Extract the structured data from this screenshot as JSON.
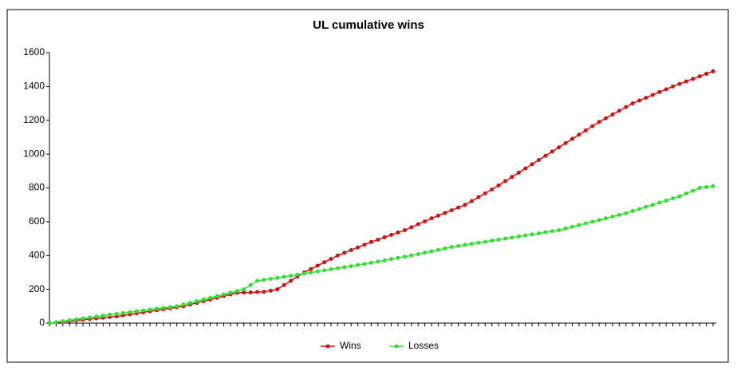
{
  "chart_data": {
    "type": "line",
    "title": "UL cumulative wins",
    "categories": [
      null,
      null,
      null,
      null,
      null,
      null,
      null,
      null,
      null,
      null,
      null,
      null,
      null,
      null,
      null,
      null,
      null,
      null,
      null,
      null,
      null,
      null,
      null,
      null,
      null,
      null,
      null,
      null,
      null,
      null,
      null,
      null,
      null,
      null,
      null,
      null,
      null,
      null,
      null,
      null,
      null,
      null,
      null,
      null,
      null,
      null,
      null,
      null,
      null,
      null,
      null,
      null,
      null,
      null,
      null,
      null,
      null,
      null,
      null,
      null,
      null,
      null,
      null,
      null,
      null,
      null,
      null,
      null,
      null,
      null,
      null,
      null,
      null,
      null,
      null,
      null,
      null,
      null,
      null,
      null,
      null,
      null,
      null,
      null,
      null,
      null,
      null,
      null,
      null,
      null,
      null,
      null,
      null,
      null,
      null,
      null,
      null,
      null,
      null,
      null
    ],
    "series": [
      {
        "name": "Wins",
        "color": "#cc1111",
        "values": [
          0,
          4,
          8,
          12,
          16,
          20,
          24,
          28,
          32,
          36,
          40,
          46,
          52,
          58,
          64,
          70,
          76,
          82,
          88,
          94,
          100,
          110,
          120,
          130,
          140,
          150,
          160,
          170,
          180,
          181,
          182,
          184,
          185,
          192,
          200,
          225,
          250,
          275,
          300,
          320,
          340,
          360,
          380,
          400,
          416,
          432,
          448,
          464,
          480,
          494,
          508,
          522,
          536,
          550,
          567,
          585,
          602,
          620,
          636,
          652,
          668,
          684,
          700,
          722,
          745,
          768,
          790,
          815,
          840,
          865,
          890,
          915,
          940,
          965,
          990,
          1015,
          1040,
          1065,
          1090,
          1115,
          1140,
          1165,
          1190,
          1212,
          1234,
          1256,
          1278,
          1300,
          1317,
          1333,
          1350,
          1367,
          1383,
          1400,
          1415,
          1430,
          1445,
          1460,
          1475,
          1490
        ]
      },
      {
        "name": "Losses",
        "color": "#33dd33",
        "values": [
          0,
          6,
          11,
          17,
          22,
          28,
          33,
          39,
          44,
          50,
          55,
          60,
          65,
          70,
          75,
          80,
          85,
          90,
          95,
          100,
          110,
          120,
          130,
          140,
          150,
          160,
          170,
          180,
          190,
          200,
          225,
          250,
          256,
          262,
          268,
          274,
          280,
          287,
          293,
          300,
          306,
          312,
          319,
          325,
          331,
          337,
          344,
          350,
          357,
          364,
          371,
          379,
          386,
          393,
          400,
          408,
          417,
          425,
          433,
          442,
          450,
          456,
          463,
          469,
          475,
          481,
          488,
          494,
          500,
          506,
          513,
          519,
          525,
          531,
          538,
          544,
          550,
          560,
          570,
          580,
          590,
          600,
          610,
          620,
          630,
          640,
          650,
          663,
          675,
          688,
          700,
          713,
          725,
          738,
          750,
          767,
          783,
          800,
          805,
          810
        ]
      }
    ],
    "ylim": [
      0,
      1600
    ],
    "yticks": [
      0,
      200,
      400,
      600,
      800,
      1000,
      1200,
      1400,
      1600
    ],
    "grid": false,
    "legend": "bottom"
  }
}
